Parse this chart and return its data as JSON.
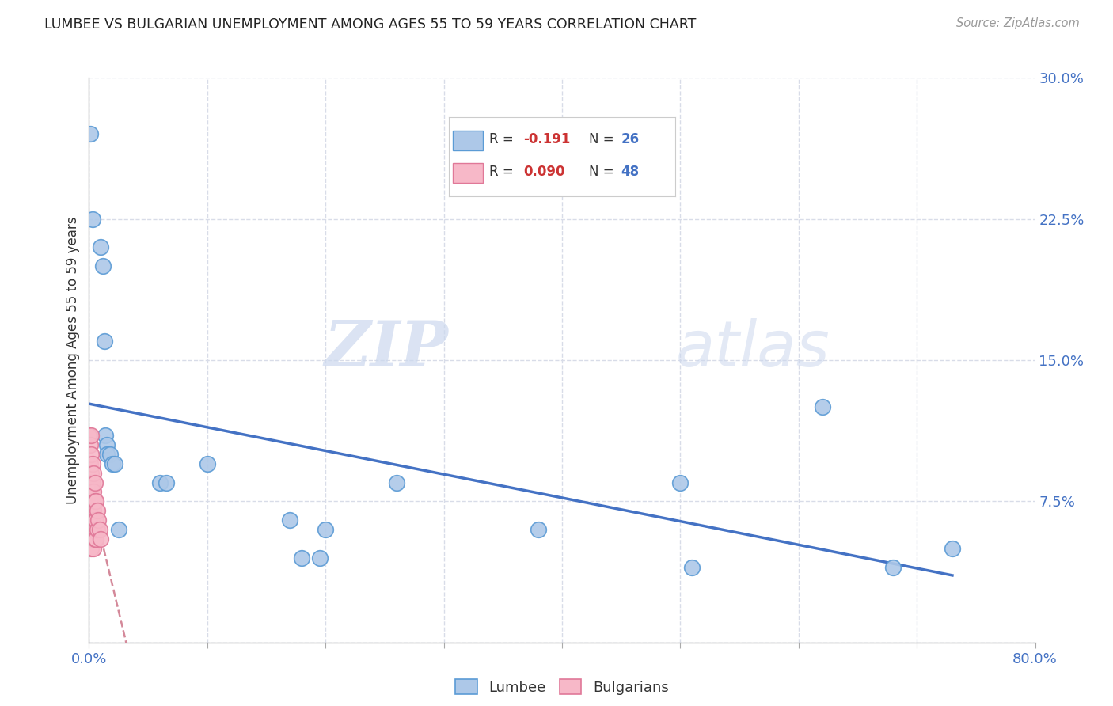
{
  "title": "LUMBEE VS BULGARIAN UNEMPLOYMENT AMONG AGES 55 TO 59 YEARS CORRELATION CHART",
  "source": "Source: ZipAtlas.com",
  "ylabel": "Unemployment Among Ages 55 to 59 years",
  "xlim": [
    0.0,
    0.8
  ],
  "ylim": [
    0.0,
    0.3
  ],
  "xticks": [
    0.0,
    0.1,
    0.2,
    0.3,
    0.4,
    0.5,
    0.6,
    0.7,
    0.8
  ],
  "xticklabels": [
    "0.0%",
    "",
    "",
    "",
    "",
    "",
    "",
    "",
    "80.0%"
  ],
  "yticks": [
    0.0,
    0.075,
    0.15,
    0.225,
    0.3
  ],
  "yticklabels_right": [
    "",
    "7.5%",
    "15.0%",
    "22.5%",
    "30.0%"
  ],
  "lumbee_color": "#adc8e8",
  "lumbee_edge_color": "#5b9bd5",
  "bulgarian_color": "#f7b8c8",
  "bulgarian_edge_color": "#e07898",
  "lumbee_R": -0.191,
  "lumbee_N": 26,
  "bulgarian_R": 0.09,
  "bulgarian_N": 48,
  "lumbee_x": [
    0.001,
    0.003,
    0.01,
    0.012,
    0.013,
    0.014,
    0.015,
    0.015,
    0.018,
    0.02,
    0.022,
    0.025,
    0.06,
    0.065,
    0.1,
    0.17,
    0.18,
    0.195,
    0.2,
    0.26,
    0.38,
    0.5,
    0.51,
    0.62,
    0.68,
    0.73
  ],
  "lumbee_y": [
    0.27,
    0.225,
    0.21,
    0.2,
    0.16,
    0.11,
    0.105,
    0.1,
    0.1,
    0.095,
    0.095,
    0.06,
    0.085,
    0.085,
    0.095,
    0.065,
    0.045,
    0.045,
    0.06,
    0.085,
    0.06,
    0.085,
    0.04,
    0.125,
    0.04,
    0.05
  ],
  "bulgarian_x": [
    0.0,
    0.0,
    0.0,
    0.0,
    0.0,
    0.001,
    0.001,
    0.001,
    0.001,
    0.001,
    0.001,
    0.001,
    0.001,
    0.001,
    0.002,
    0.002,
    0.002,
    0.002,
    0.002,
    0.002,
    0.002,
    0.002,
    0.002,
    0.002,
    0.003,
    0.003,
    0.003,
    0.003,
    0.003,
    0.003,
    0.003,
    0.004,
    0.004,
    0.004,
    0.004,
    0.004,
    0.005,
    0.005,
    0.005,
    0.005,
    0.006,
    0.006,
    0.006,
    0.007,
    0.007,
    0.008,
    0.009,
    0.01
  ],
  "bulgarian_y": [
    0.11,
    0.095,
    0.085,
    0.07,
    0.06,
    0.105,
    0.095,
    0.09,
    0.085,
    0.08,
    0.075,
    0.065,
    0.06,
    0.055,
    0.11,
    0.1,
    0.09,
    0.085,
    0.08,
    0.075,
    0.065,
    0.06,
    0.055,
    0.05,
    0.095,
    0.085,
    0.08,
    0.075,
    0.07,
    0.065,
    0.055,
    0.09,
    0.08,
    0.07,
    0.06,
    0.05,
    0.085,
    0.075,
    0.065,
    0.055,
    0.075,
    0.065,
    0.055,
    0.07,
    0.06,
    0.065,
    0.06,
    0.055
  ],
  "lumbee_line_color": "#4472c4",
  "bulgarian_line_color": "#d4899a",
  "watermark_zip": "ZIP",
  "watermark_atlas": "atlas",
  "grid_color": "#d8dce8",
  "background_color": "#ffffff",
  "legend_R_color": "#cc3333",
  "legend_N_color": "#4472c4",
  "legend_text_color": "#333333"
}
